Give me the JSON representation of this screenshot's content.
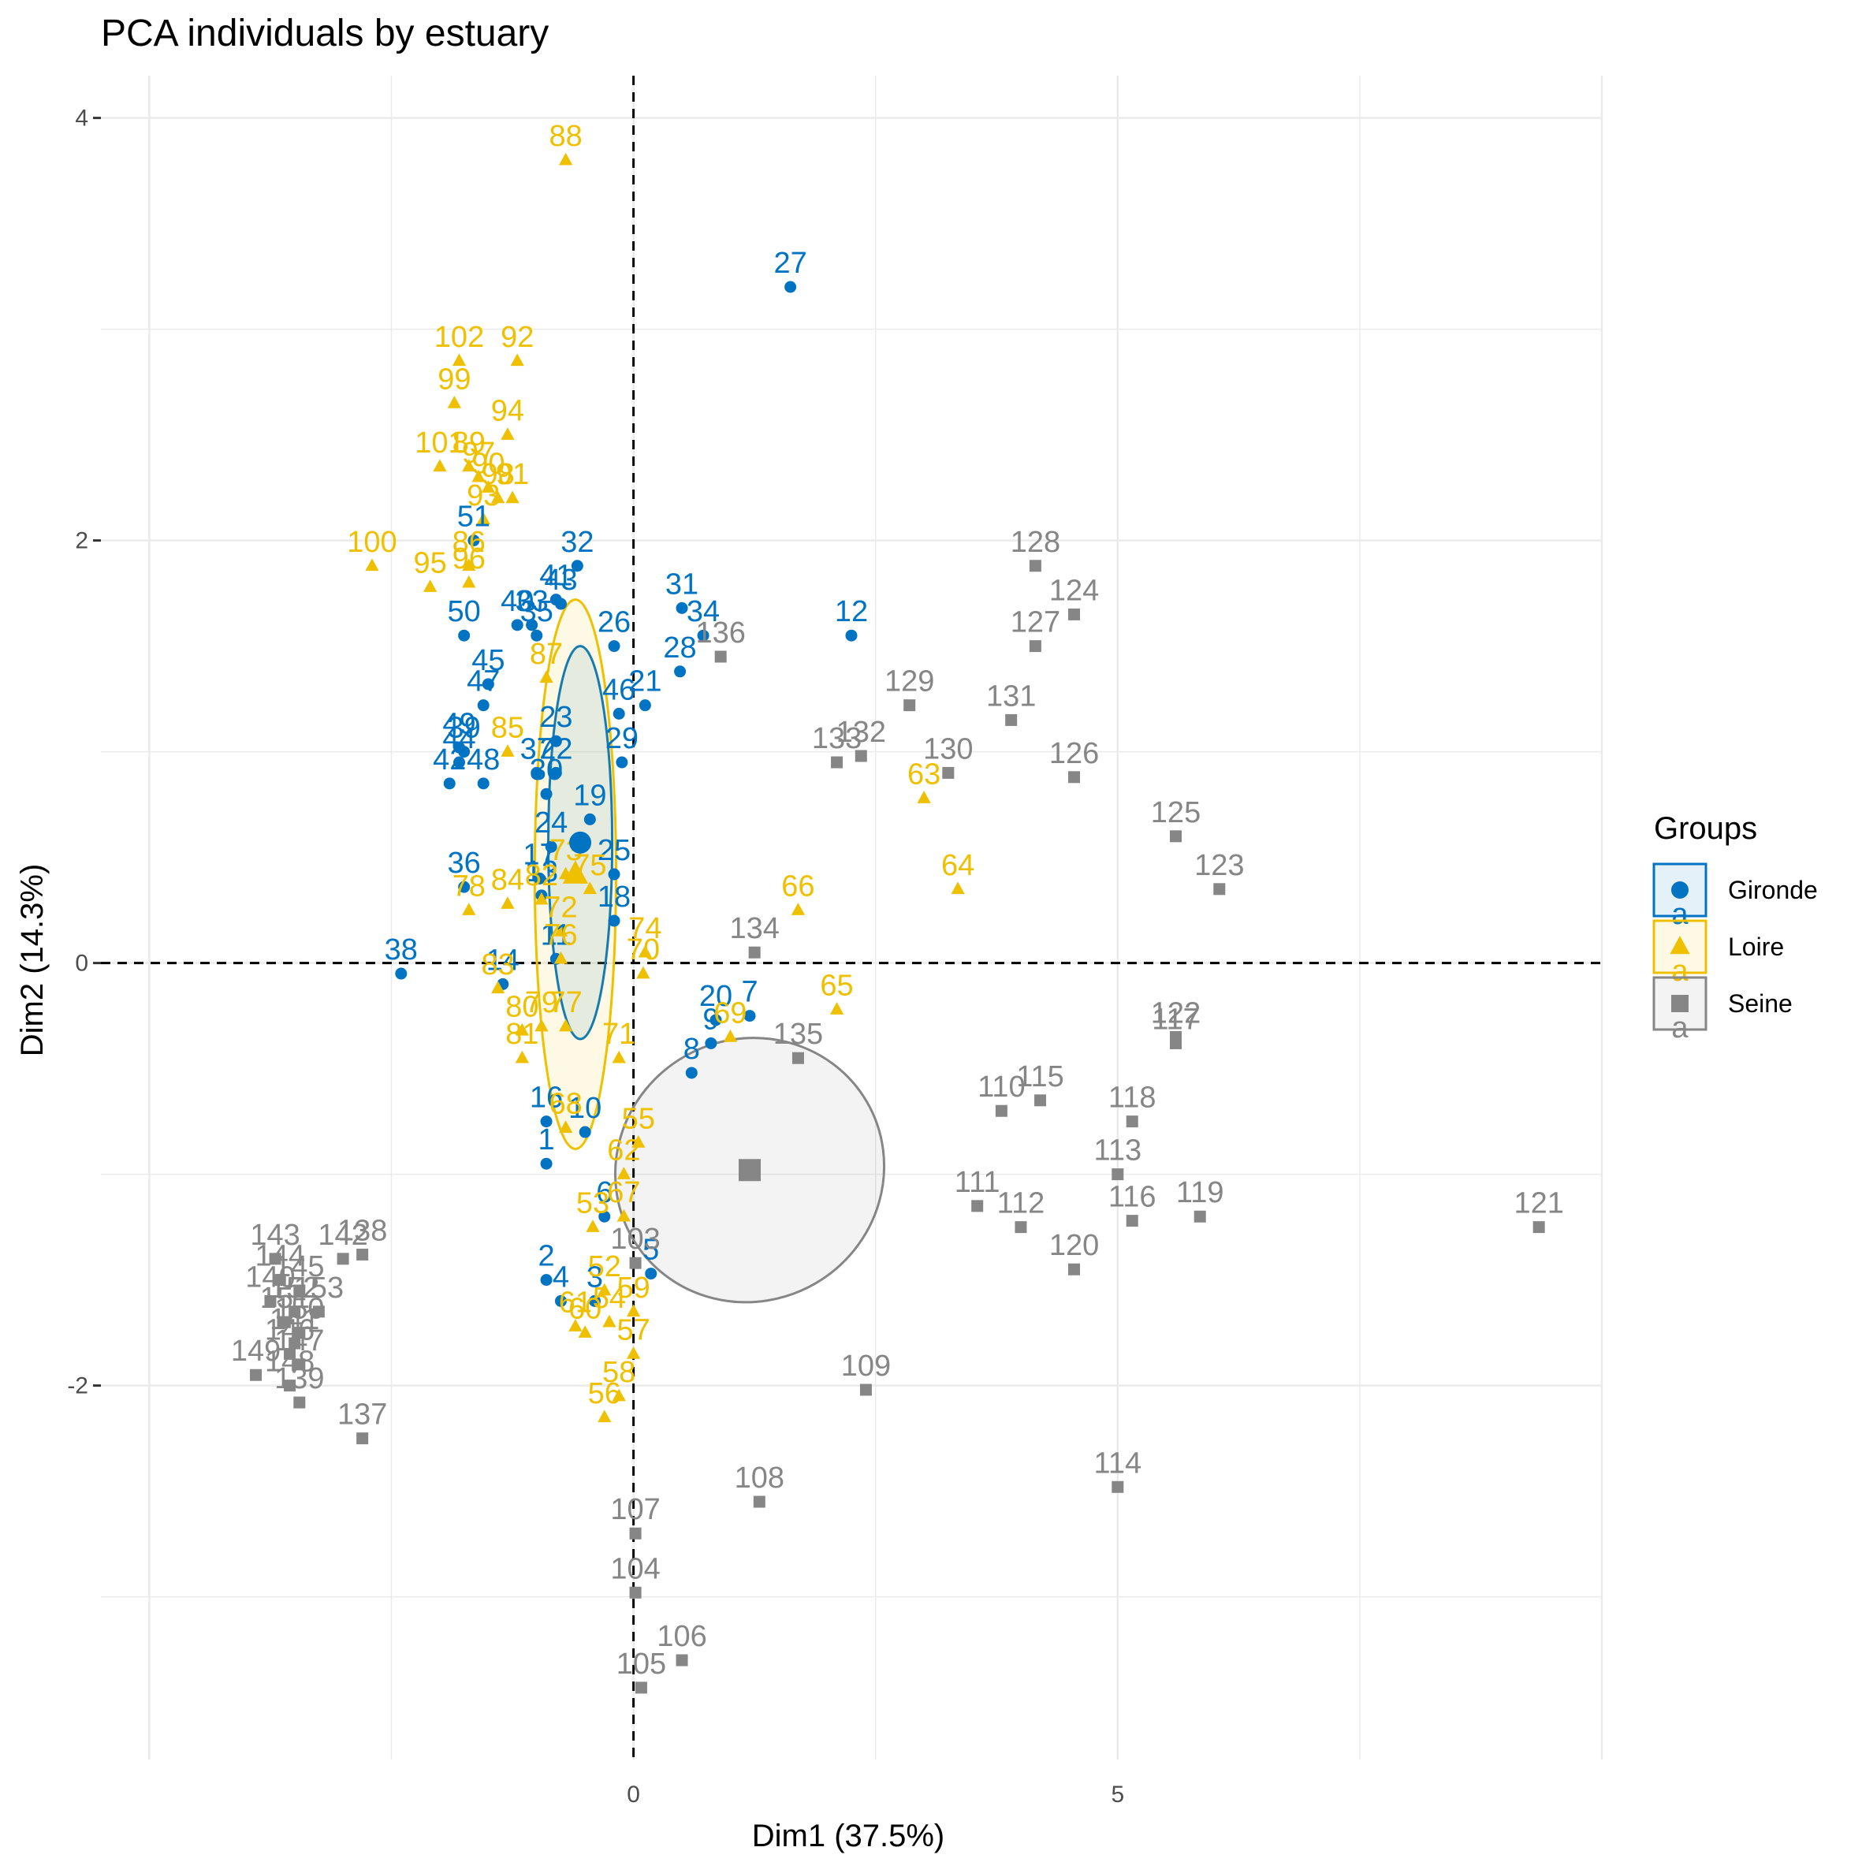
{
  "chart_data": {
    "type": "scatter",
    "title": "PCA individuals by estuary",
    "xlabel": "Dim1 (37.5%)",
    "ylabel": "Dim2 (14.3%)",
    "xlim": [
      -5.5,
      10.0
    ],
    "ylim": [
      -3.77,
      4.2
    ],
    "x_ticks": [
      0,
      5
    ],
    "y_ticks": [
      -2,
      0,
      2,
      4
    ],
    "grid": true,
    "legend": {
      "title": "Groups",
      "position": "right",
      "key_glyph": "a"
    },
    "series": [
      {
        "name": "Gironde",
        "color": "#0073C2",
        "marker": "circle",
        "centroid": [
          -0.55,
          0.57
        ],
        "ellipse": {
          "cx": -0.55,
          "cy": 0.57,
          "rx": 0.33,
          "ry": 0.93,
          "angle": 0
        },
        "points": [
          {
            "label": "1",
            "x": -0.9,
            "y": -0.95
          },
          {
            "label": "2",
            "x": -0.9,
            "y": -1.5
          },
          {
            "label": "3",
            "x": -0.4,
            "y": -1.6
          },
          {
            "label": "4",
            "x": -0.75,
            "y": -1.6
          },
          {
            "label": "5",
            "x": 0.18,
            "y": -1.47
          },
          {
            "label": "6",
            "x": -0.3,
            "y": -1.2
          },
          {
            "label": "7",
            "x": 1.2,
            "y": -0.25
          },
          {
            "label": "8",
            "x": 0.6,
            "y": -0.52
          },
          {
            "label": "9",
            "x": 0.8,
            "y": -0.38
          },
          {
            "label": "10",
            "x": -0.5,
            "y": -0.8
          },
          {
            "label": "11",
            "x": -0.8,
            "y": 0.02
          },
          {
            "label": "12",
            "x": 2.25,
            "y": 1.55
          },
          {
            "label": "13",
            "x": -0.95,
            "y": 0.32
          },
          {
            "label": "14",
            "x": -1.35,
            "y": -0.1
          },
          {
            "label": "16",
            "x": -0.9,
            "y": -0.75
          },
          {
            "label": "17",
            "x": -0.97,
            "y": 0.4
          },
          {
            "label": "18",
            "x": -0.2,
            "y": 0.2
          },
          {
            "label": "19",
            "x": -0.45,
            "y": 0.68
          },
          {
            "label": "20",
            "x": 0.85,
            "y": -0.27
          },
          {
            "label": "21",
            "x": 0.12,
            "y": 1.22
          },
          {
            "label": "22",
            "x": -0.8,
            "y": 0.9
          },
          {
            "label": "23",
            "x": -0.8,
            "y": 1.05
          },
          {
            "label": "24",
            "x": -0.85,
            "y": 0.55
          },
          {
            "label": "25",
            "x": -0.2,
            "y": 0.42
          },
          {
            "label": "26",
            "x": -0.2,
            "y": 1.5
          },
          {
            "label": "27",
            "x": 1.62,
            "y": 3.2
          },
          {
            "label": "28",
            "x": 0.48,
            "y": 1.38
          },
          {
            "label": "29",
            "x": -0.12,
            "y": 0.95
          },
          {
            "label": "30",
            "x": -0.9,
            "y": 0.8
          },
          {
            "label": "31",
            "x": 0.5,
            "y": 1.68
          },
          {
            "label": "32",
            "x": -0.58,
            "y": 1.88
          },
          {
            "label": "33",
            "x": -1.05,
            "y": 1.6
          },
          {
            "label": "34",
            "x": 0.72,
            "y": 1.55
          },
          {
            "label": "35",
            "x": -1.0,
            "y": 1.55
          },
          {
            "label": "36",
            "x": -1.75,
            "y": 0.36
          },
          {
            "label": "37",
            "x": -1.0,
            "y": 0.9
          },
          {
            "label": "38",
            "x": -2.4,
            "y": -0.05
          },
          {
            "label": "39",
            "x": -1.75,
            "y": 1.0
          },
          {
            "label": "40",
            "x": -1.2,
            "y": 1.6
          },
          {
            "label": "41",
            "x": -0.8,
            "y": 1.72
          },
          {
            "label": "42",
            "x": -1.9,
            "y": 0.85
          },
          {
            "label": "43",
            "x": -0.75,
            "y": 1.7
          },
          {
            "label": "44",
            "x": -1.8,
            "y": 0.95
          },
          {
            "label": "45",
            "x": -1.5,
            "y": 1.32
          },
          {
            "label": "46",
            "x": -0.15,
            "y": 1.18
          },
          {
            "label": "47",
            "x": -1.55,
            "y": 1.22
          },
          {
            "label": "48",
            "x": -1.55,
            "y": 0.85
          },
          {
            "label": "49",
            "x": -1.8,
            "y": 1.02
          },
          {
            "label": "50",
            "x": -1.75,
            "y": 1.55
          },
          {
            "label": "51",
            "x": -1.65,
            "y": 2.0
          }
        ]
      },
      {
        "name": "Loire",
        "color": "#EFC000",
        "marker": "triangle",
        "centroid": [
          -0.6,
          0.42
        ],
        "ellipse": {
          "cx": -0.6,
          "cy": 0.42,
          "rx": 0.42,
          "ry": 1.3,
          "angle": 0
        },
        "points": [
          {
            "label": "52",
            "x": -0.3,
            "y": -1.55
          },
          {
            "label": "53",
            "x": -0.42,
            "y": -1.25
          },
          {
            "label": "54",
            "x": -0.25,
            "y": -1.7
          },
          {
            "label": "55",
            "x": 0.05,
            "y": -0.85
          },
          {
            "label": "56",
            "x": -0.3,
            "y": -2.15
          },
          {
            "label": "57",
            "x": 0.0,
            "y": -1.85
          },
          {
            "label": "58",
            "x": -0.15,
            "y": -2.05
          },
          {
            "label": "59",
            "x": 0.0,
            "y": -1.65
          },
          {
            "label": "60",
            "x": -0.5,
            "y": -1.75
          },
          {
            "label": "61",
            "x": -0.6,
            "y": -1.72
          },
          {
            "label": "62",
            "x": -0.1,
            "y": -1.0
          },
          {
            "label": "63",
            "x": 3.0,
            "y": 0.78
          },
          {
            "label": "64",
            "x": 3.35,
            "y": 0.35
          },
          {
            "label": "65",
            "x": 2.1,
            "y": -0.22
          },
          {
            "label": "66",
            "x": 1.7,
            "y": 0.25
          },
          {
            "label": "67",
            "x": -0.1,
            "y": -1.2
          },
          {
            "label": "68",
            "x": -0.7,
            "y": -0.78
          },
          {
            "label": "69",
            "x": 1.0,
            "y": -0.35
          },
          {
            "label": "70",
            "x": 0.1,
            "y": -0.05
          },
          {
            "label": "71",
            "x": -0.15,
            "y": -0.45
          },
          {
            "label": "72",
            "x": -0.75,
            "y": 0.15
          },
          {
            "label": "73",
            "x": -0.7,
            "y": 0.42
          },
          {
            "label": "74",
            "x": 0.12,
            "y": 0.05
          },
          {
            "label": "75",
            "x": -0.45,
            "y": 0.35
          },
          {
            "label": "76",
            "x": -0.75,
            "y": 0.02
          },
          {
            "label": "77",
            "x": -0.7,
            "y": -0.3
          },
          {
            "label": "78",
            "x": -1.7,
            "y": 0.25
          },
          {
            "label": "79",
            "x": -0.95,
            "y": -0.3
          },
          {
            "label": "80",
            "x": -1.15,
            "y": -0.32
          },
          {
            "label": "81",
            "x": -1.15,
            "y": -0.45
          },
          {
            "label": "82",
            "x": -0.95,
            "y": 0.3
          },
          {
            "label": "83",
            "x": -1.4,
            "y": -0.12
          },
          {
            "label": "84",
            "x": -1.3,
            "y": 0.28
          },
          {
            "label": "85",
            "x": -1.3,
            "y": 1.0
          },
          {
            "label": "86",
            "x": -1.7,
            "y": 1.88
          },
          {
            "label": "87",
            "x": -0.9,
            "y": 1.35
          },
          {
            "label": "88",
            "x": -0.7,
            "y": 3.8
          },
          {
            "label": "89",
            "x": -1.7,
            "y": 2.35
          },
          {
            "label": "90",
            "x": -1.5,
            "y": 2.25
          },
          {
            "label": "91",
            "x": -1.25,
            "y": 2.2
          },
          {
            "label": "92",
            "x": -1.2,
            "y": 2.85
          },
          {
            "label": "93",
            "x": -1.55,
            "y": 2.1
          },
          {
            "label": "94",
            "x": -1.3,
            "y": 2.5
          },
          {
            "label": "95",
            "x": -2.1,
            "y": 1.78
          },
          {
            "label": "96",
            "x": -1.7,
            "y": 1.8
          },
          {
            "label": "97",
            "x": -1.6,
            "y": 2.3
          },
          {
            "label": "98",
            "x": -1.4,
            "y": 2.2
          },
          {
            "label": "99",
            "x": -1.85,
            "y": 2.65
          },
          {
            "label": "100",
            "x": -2.7,
            "y": 1.88
          },
          {
            "label": "101",
            "x": -2.0,
            "y": 2.35
          },
          {
            "label": "102",
            "x": -1.8,
            "y": 2.85
          }
        ]
      },
      {
        "name": "Seine",
        "color": "#868686",
        "marker": "square",
        "centroid": [
          1.2,
          -0.98
        ],
        "ellipse": {
          "cx": 1.2,
          "cy": -0.98,
          "rx": 1.4,
          "ry": 0.62,
          "angle": -30
        },
        "points": [
          {
            "label": "103",
            "x": 0.02,
            "y": -1.42
          },
          {
            "label": "104",
            "x": 0.02,
            "y": -2.98
          },
          {
            "label": "105",
            "x": 0.08,
            "y": -3.43
          },
          {
            "label": "106",
            "x": 0.5,
            "y": -3.3
          },
          {
            "label": "107",
            "x": 0.02,
            "y": -2.7
          },
          {
            "label": "108",
            "x": 1.3,
            "y": -2.55
          },
          {
            "label": "109",
            "x": 2.4,
            "y": -2.02
          },
          {
            "label": "110",
            "x": 3.8,
            "y": -0.7
          },
          {
            "label": "111",
            "x": 3.55,
            "y": -1.15
          },
          {
            "label": "112",
            "x": 4.0,
            "y": -1.25
          },
          {
            "label": "113",
            "x": 5.0,
            "y": -1.0
          },
          {
            "label": "114",
            "x": 5.0,
            "y": -2.48
          },
          {
            "label": "115",
            "x": 4.2,
            "y": -0.65
          },
          {
            "label": "116",
            "x": 5.15,
            "y": -1.22
          },
          {
            "label": "117",
            "x": 5.6,
            "y": -0.38
          },
          {
            "label": "118",
            "x": 5.15,
            "y": -0.75
          },
          {
            "label": "119",
            "x": 5.85,
            "y": -1.2
          },
          {
            "label": "120",
            "x": 4.55,
            "y": -1.45
          },
          {
            "label": "121",
            "x": 9.35,
            "y": -1.25
          },
          {
            "label": "122",
            "x": 5.6,
            "y": -0.35
          },
          {
            "label": "123",
            "x": 6.05,
            "y": 0.35
          },
          {
            "label": "124",
            "x": 4.55,
            "y": 1.65
          },
          {
            "label": "125",
            "x": 5.6,
            "y": 0.6
          },
          {
            "label": "126",
            "x": 4.55,
            "y": 0.88
          },
          {
            "label": "127",
            "x": 4.15,
            "y": 1.5
          },
          {
            "label": "128",
            "x": 4.15,
            "y": 1.88
          },
          {
            "label": "129",
            "x": 2.85,
            "y": 1.22
          },
          {
            "label": "130",
            "x": 3.25,
            "y": 0.9
          },
          {
            "label": "131",
            "x": 3.9,
            "y": 1.15
          },
          {
            "label": "132",
            "x": 2.35,
            "y": 0.98
          },
          {
            "label": "133",
            "x": 2.1,
            "y": 0.95
          },
          {
            "label": "134",
            "x": 1.25,
            "y": 0.05
          },
          {
            "label": "135",
            "x": 1.7,
            "y": -0.45
          },
          {
            "label": "136",
            "x": 0.9,
            "y": 1.45
          },
          {
            "label": "137",
            "x": -2.8,
            "y": -2.25
          },
          {
            "label": "138",
            "x": -2.8,
            "y": -1.38
          },
          {
            "label": "139",
            "x": -3.45,
            "y": -2.08
          },
          {
            "label": "140",
            "x": -3.75,
            "y": -1.6
          },
          {
            "label": "141",
            "x": -3.5,
            "y": -1.8
          },
          {
            "label": "142",
            "x": -3.0,
            "y": -1.4
          },
          {
            "label": "143",
            "x": -3.7,
            "y": -1.4
          },
          {
            "label": "144",
            "x": -3.65,
            "y": -1.5
          },
          {
            "label": "145",
            "x": -3.45,
            "y": -1.55
          },
          {
            "label": "146",
            "x": -3.55,
            "y": -1.85
          },
          {
            "label": "147",
            "x": -3.45,
            "y": -1.9
          },
          {
            "label": "148",
            "x": -3.55,
            "y": -2.0
          },
          {
            "label": "149",
            "x": -3.9,
            "y": -1.95
          },
          {
            "label": "150",
            "x": -3.45,
            "y": -1.75
          },
          {
            "label": "151",
            "x": -3.6,
            "y": -1.7
          },
          {
            "label": "152",
            "x": -3.5,
            "y": -1.65
          },
          {
            "label": "153",
            "x": -3.25,
            "y": -1.65
          }
        ]
      }
    ]
  }
}
